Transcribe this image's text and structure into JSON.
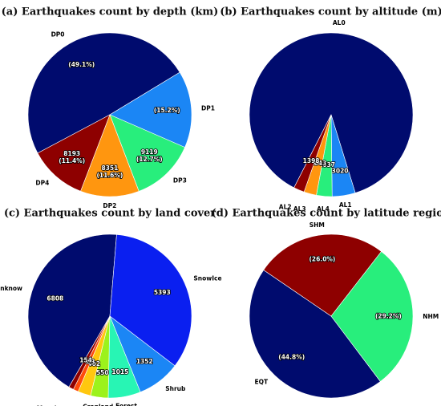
{
  "chart_data": [
    {
      "type": "pie",
      "title": "(a) Earthquakes count by depth (km)",
      "start_angle_deg": 208,
      "direction": "clockwise",
      "slices": [
        {
          "label": "DP0",
          "value": 49.1,
          "display": "(49.1%)",
          "color": "#000b6e"
        },
        {
          "label": "DP1",
          "value": 15.2,
          "display": "(15.2%)",
          "color": "#1b86f5"
        },
        {
          "label": "DP3",
          "value": 12.7,
          "display": "9119\n(12.7%)",
          "color": "#28ee7c"
        },
        {
          "label": "DP2",
          "value": 11.6,
          "display": "8351\n(11.6%)",
          "color": "#ff960f"
        },
        {
          "label": "DP4",
          "value": 11.4,
          "display": "8193\n(11.4%)",
          "color": "#8e0000"
        }
      ]
    },
    {
      "type": "pie",
      "title": "(b) Earthquakes count by altitude (m)",
      "start_angle_deg": 243,
      "direction": "clockwise",
      "slices": [
        {
          "label": "AL0",
          "value": 57902,
          "display": "",
          "color": "#000b6e"
        },
        {
          "label": "AL1",
          "value": 3020,
          "display": "3020",
          "color": "#1b86f5"
        },
        {
          "label": "AL4",
          "value": 2037,
          "display": "2037",
          "color": "#28ee7c"
        },
        {
          "label": "AL3",
          "value": 1643,
          "display": "1643",
          "color": "#ff960f"
        },
        {
          "label": "AL2",
          "value": 1398,
          "display": "1398",
          "color": "#8e0000"
        }
      ]
    },
    {
      "type": "pie",
      "title": "(c) Earthquakes count by land cover",
      "start_angle_deg": 240,
      "direction": "clockwise",
      "slices": [
        {
          "label": "Unknow",
          "value": 6808,
          "display": "6808",
          "color": "#000b6e"
        },
        {
          "label": "SnowIce",
          "value": 5393,
          "display": "5393",
          "color": "#0a1ff0"
        },
        {
          "label": "Shrub",
          "value": 1352,
          "display": "1352",
          "color": "#1b86f5"
        },
        {
          "label": "Forest",
          "value": 1015,
          "display": "1015",
          "color": "#28f5b4"
        },
        {
          "label": "Cropland",
          "value": 550,
          "display": "550",
          "color": "#9cf21c"
        },
        {
          "label": "Grassland",
          "value": 402,
          "display": "402",
          "color": "#ffc70f"
        },
        {
          "label": "Savannah",
          "value": 163,
          "display": "163",
          "color": "#ff4a0a"
        },
        {
          "label": "Mosaic",
          "value": 154,
          "display": "154",
          "color": "#8e0000"
        }
      ]
    },
    {
      "type": "pie",
      "title": "(d) Earthquakes count by latitude region",
      "start_angle_deg": 307,
      "direction": "clockwise",
      "slices": [
        {
          "label": "EQT",
          "value": 44.8,
          "display": "(44.8%)",
          "color": "#000b6e"
        },
        {
          "label": "SHM",
          "value": 26.0,
          "display": "(26.0%)",
          "color": "#8e0000"
        },
        {
          "label": "NHM",
          "value": 29.2,
          "display": "(29.2%)",
          "color": "#28ee7c"
        }
      ]
    }
  ]
}
